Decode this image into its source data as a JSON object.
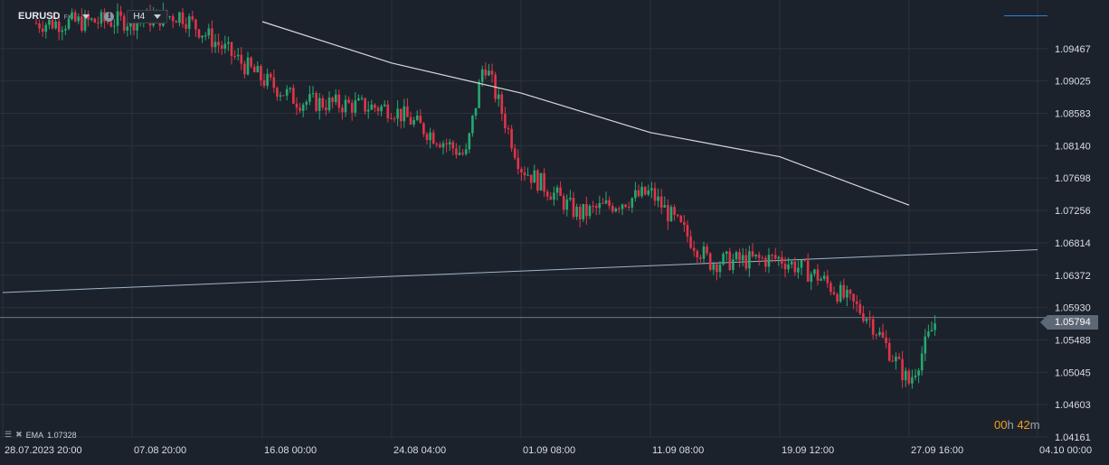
{
  "header": {
    "symbol": "EURUSD",
    "market_tag": "FX",
    "info_glyph": "i",
    "timeframe": "H4"
  },
  "indicator": {
    "label": "EMA",
    "value": "1.07328"
  },
  "timer": {
    "hours": "00",
    "hours_unit": "h",
    "minutes": "42",
    "minutes_unit": "m"
  },
  "current_price": "1.05794",
  "colors": {
    "background": "#1c222b",
    "grid": "#2a323c",
    "up": "#26a870",
    "down": "#e0344a",
    "ema": "#d6d9de",
    "trendline": "#9fb6cc",
    "price_line": "#6c7888",
    "axis_text": "#d8dde6",
    "accent_timer": "#f0a020"
  },
  "chart_data": {
    "type": "candlestick",
    "y_ticks": [
      "1.09467",
      "1.09025",
      "1.08583",
      "1.08140",
      "1.07698",
      "1.07256",
      "1.06814",
      "1.06372",
      "1.05930",
      "1.05488",
      "1.05045",
      "1.04603",
      "1.04161"
    ],
    "x_tick_labels": [
      "28.07.2023 20:00",
      "07.08 20:00",
      "16.08 00:00",
      "24.08 04:00",
      "01.09 08:00",
      "11.09 08:00",
      "19.09 12:00",
      "27.09 16:00",
      "04.10 00:00"
    ],
    "ylim": [
      1.04161,
      1.09909
    ],
    "grid": true,
    "series": [
      {
        "name": "EMA",
        "type": "line",
        "points": [
          [
            "16.08 00:00",
            1.09835
          ],
          [
            "24.08 04:00",
            1.0927
          ],
          [
            "01.09 08:00",
            1.0886
          ],
          [
            "11.09 08:00",
            1.0832
          ],
          [
            "19.09 12:00",
            1.0799
          ],
          [
            "27.09 16:00",
            1.07328
          ]
        ]
      },
      {
        "name": "trendline",
        "type": "line",
        "points": [
          [
            "28.07.2023 20:00",
            1.06135
          ],
          [
            "04.10 00:00",
            1.0672
          ]
        ]
      }
    ],
    "close_path": [
      [
        "28.07.2023 20:00",
        1.098
      ],
      [
        "07.08 20:00",
        1.0985
      ],
      [
        "10.08",
        1.0993
      ],
      [
        "16.08 00:00",
        1.0905
      ],
      [
        "18.08",
        1.0875
      ],
      [
        "24.08 04:00",
        1.0865
      ],
      [
        "25.08",
        1.08
      ],
      [
        "29.08",
        1.093
      ],
      [
        "01.09 08:00",
        1.0785
      ],
      [
        "05.09",
        1.072
      ],
      [
        "11.09 08:00",
        1.075
      ],
      [
        "14.09",
        1.0655
      ],
      [
        "19.09 12:00",
        1.066
      ],
      [
        "21.09",
        1.0635
      ],
      [
        "25.09",
        1.058
      ],
      [
        "27.09 16:00",
        1.049
      ],
      [
        "29.09",
        1.05794
      ]
    ]
  }
}
